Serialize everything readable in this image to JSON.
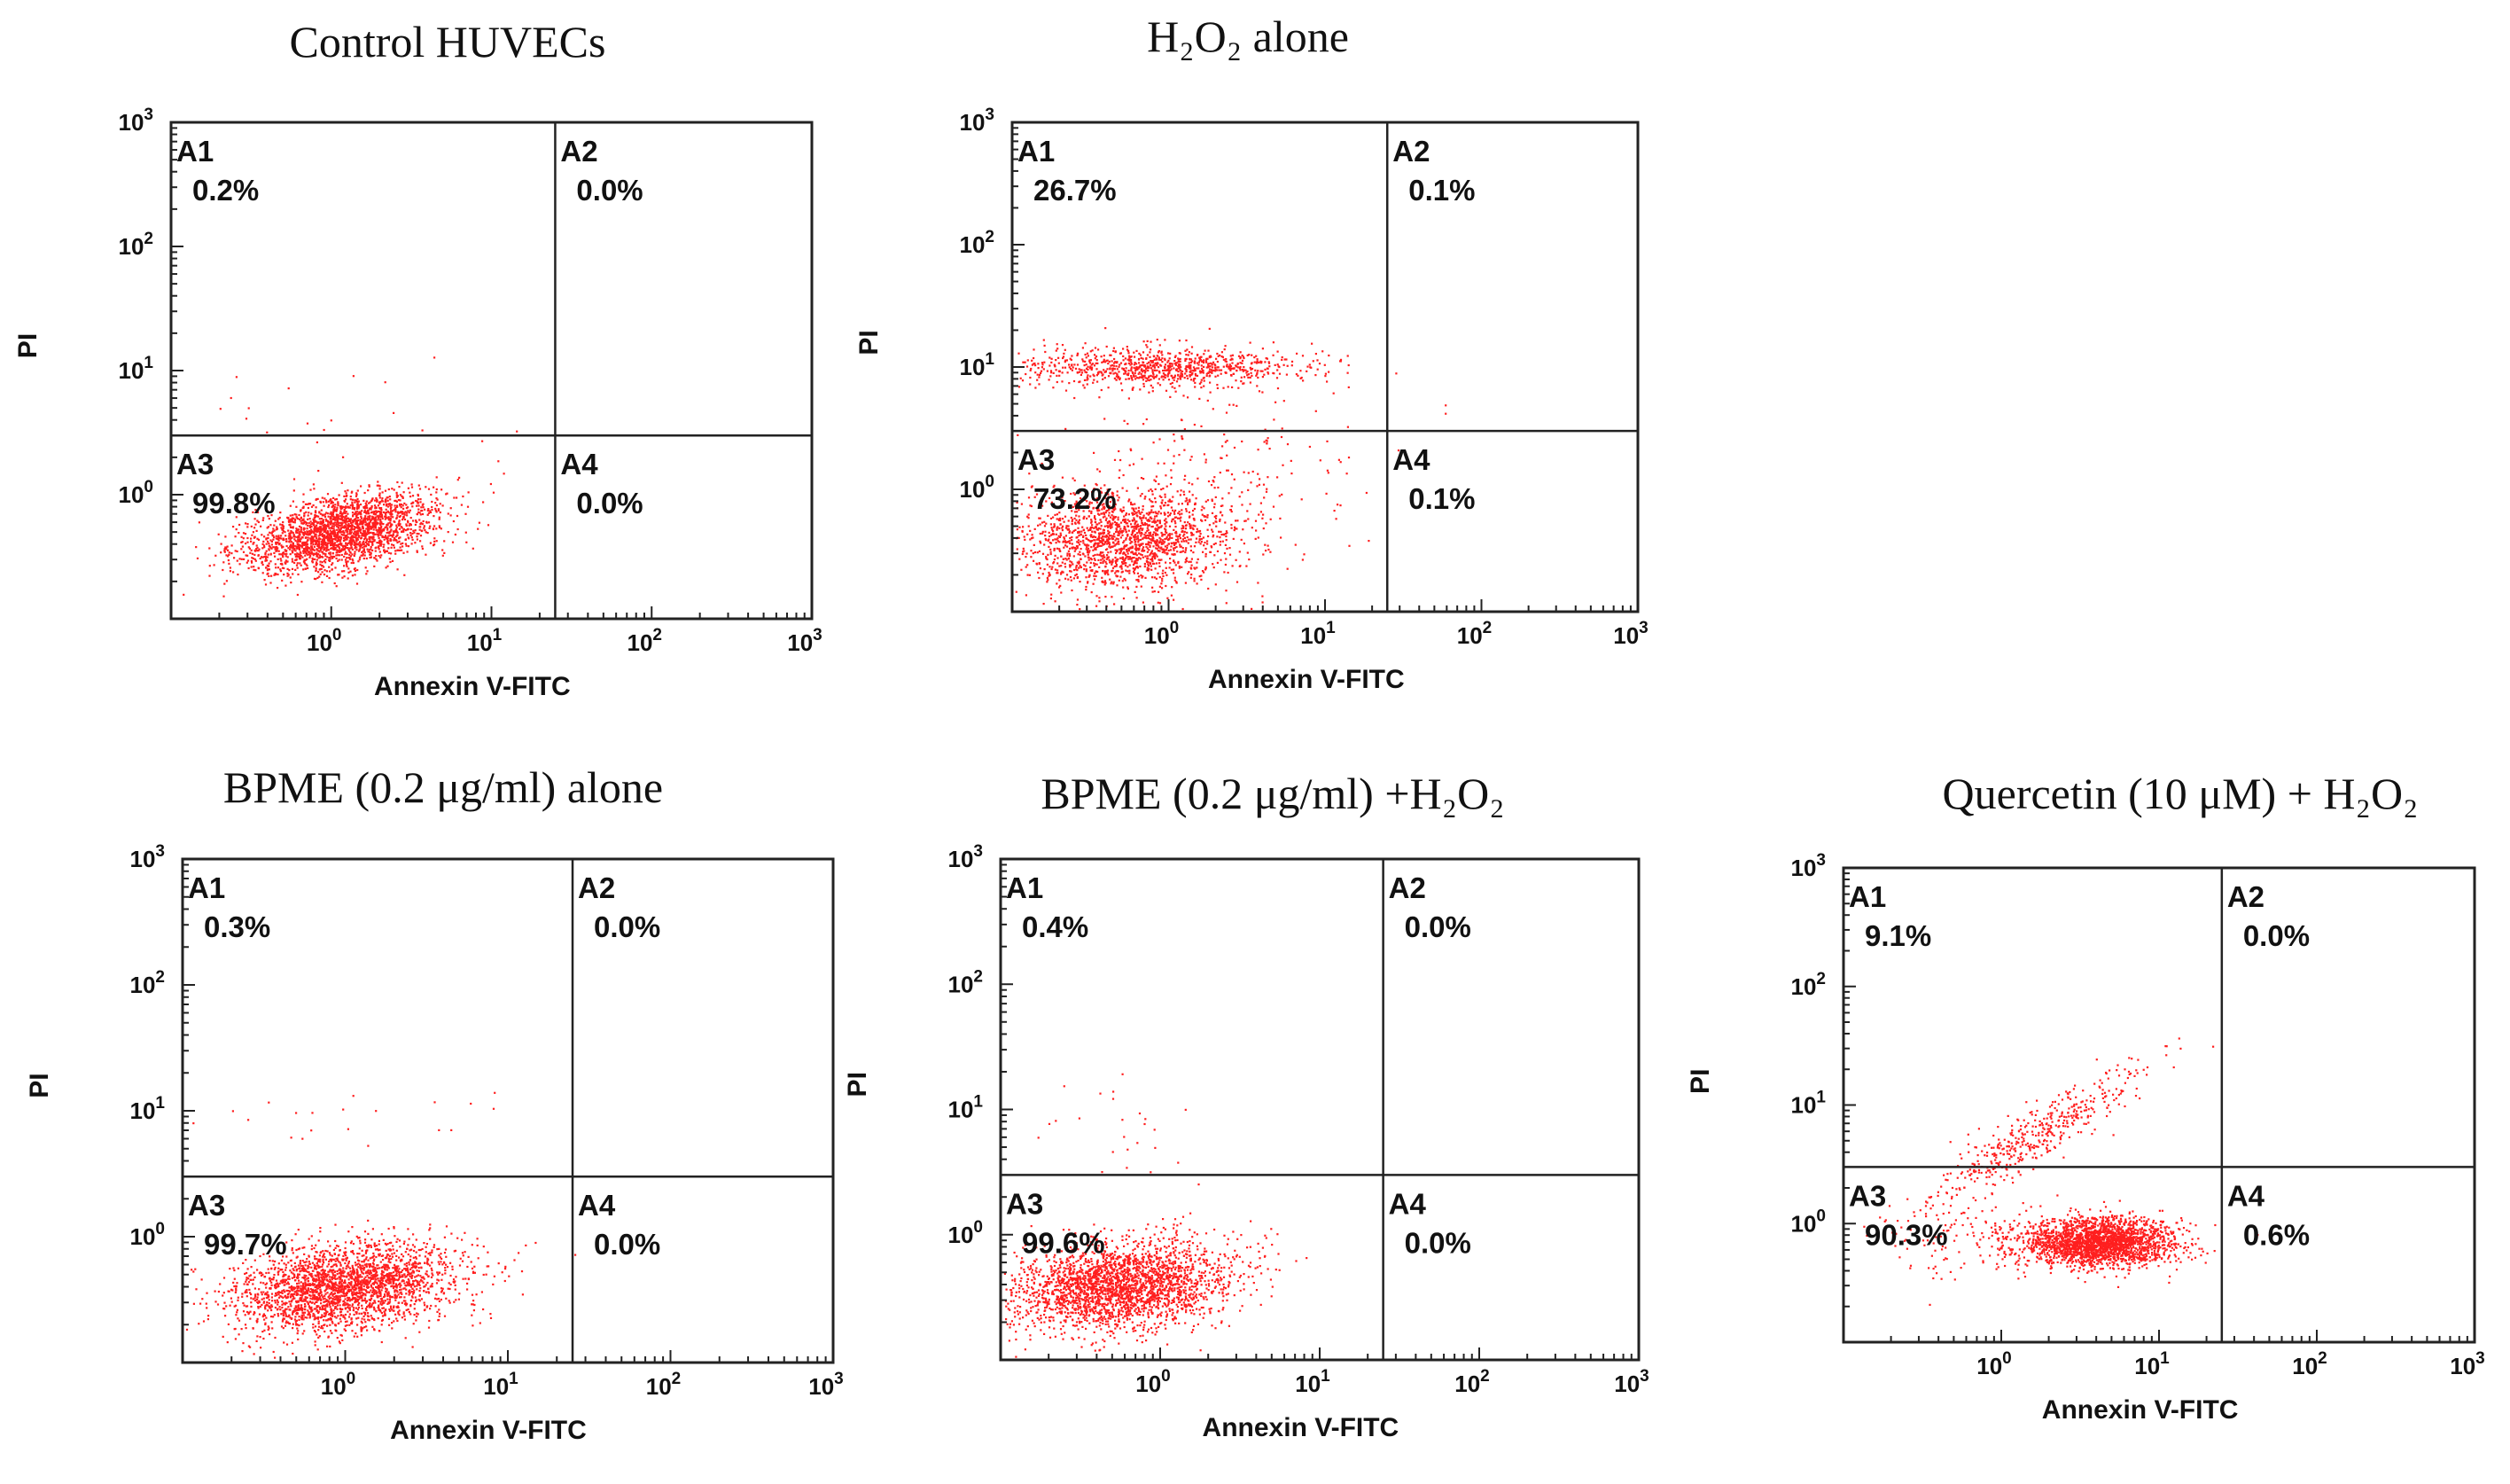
{
  "chart_data": [
    {
      "type": "scatter",
      "title": "Control HUVECs",
      "xlabel": "Annexin V-FITC",
      "ylabel": "PI",
      "x_scale": "log",
      "y_scale": "log",
      "xlim": [
        0.1,
        1000
      ],
      "ylim": [
        0.1,
        1000
      ],
      "x_ticks": [
        "10",
        "10",
        "10",
        "10"
      ],
      "x_tick_exps": [
        "0",
        "1",
        "2",
        "3"
      ],
      "y_ticks": [
        "10",
        "10",
        "10",
        "10"
      ],
      "y_tick_exps": [
        "0",
        "1",
        "2",
        "3"
      ],
      "gate": {
        "x": 25,
        "y": 3
      },
      "quadrants": [
        {
          "name": "A1",
          "percent": "0.2%"
        },
        {
          "name": "A2",
          "percent": "0.0%"
        },
        {
          "name": "A3",
          "percent": "99.8%"
        },
        {
          "name": "A4",
          "percent": "0.0%"
        }
      ],
      "populations": [
        {
          "count": 2400,
          "cx_log": 0.05,
          "cy_log": -0.3,
          "sx": 0.3,
          "sy": 0.16,
          "rho": 0.45
        },
        {
          "count": 25,
          "cx_log": 0.0,
          "cy_log": 0.6,
          "sx": 0.5,
          "sy": 0.3,
          "rho": 0.0
        }
      ],
      "color": "#ff1f1f"
    },
    {
      "type": "scatter",
      "title": "H₂O₂ alone",
      "xlabel": "Annexin V-FITC",
      "ylabel": "PI",
      "x_scale": "log",
      "y_scale": "log",
      "xlim": [
        0.1,
        1000
      ],
      "ylim": [
        0.1,
        1000
      ],
      "x_ticks": [
        "10",
        "10",
        "10",
        "10"
      ],
      "x_tick_exps": [
        "0",
        "1",
        "2",
        "3"
      ],
      "y_ticks": [
        "10",
        "10",
        "10",
        "10"
      ],
      "y_tick_exps": [
        "0",
        "1",
        "2",
        "3"
      ],
      "gate": {
        "x": 25,
        "y": 3
      },
      "quadrants": [
        {
          "name": "A1",
          "percent": "26.7%"
        },
        {
          "name": "A2",
          "percent": "0.1%"
        },
        {
          "name": "A3",
          "percent": "73.2%"
        },
        {
          "name": "A4",
          "percent": "0.1%"
        }
      ],
      "populations": [
        {
          "count": 1800,
          "cx_log": -0.3,
          "cy_log": -0.4,
          "sx": 0.35,
          "sy": 0.2,
          "rho": 0.1
        },
        {
          "count": 900,
          "cx_log": -0.05,
          "cy_log": 1.0,
          "sx": 0.45,
          "sy": 0.08,
          "rho": 0.0
        },
        {
          "count": 220,
          "cx_log": 0.2,
          "cy_log": 0.2,
          "sx": 0.6,
          "sy": 0.5,
          "rho": 0.0
        }
      ],
      "color": "#ff1f1f"
    },
    {
      "type": "scatter",
      "title": "BPME (0.2 μg/ml) alone",
      "xlabel": "Annexin V-FITC",
      "ylabel": "PI",
      "x_scale": "log",
      "y_scale": "log",
      "xlim": [
        0.1,
        1000
      ],
      "ylim": [
        0.1,
        1000
      ],
      "x_ticks": [
        "10",
        "10",
        "10",
        "10"
      ],
      "x_tick_exps": [
        "0",
        "1",
        "2",
        "3"
      ],
      "y_ticks": [
        "10",
        "10",
        "10",
        "10"
      ],
      "y_tick_exps": [
        "0",
        "1",
        "2",
        "3"
      ],
      "gate": {
        "x": 25,
        "y": 3
      },
      "quadrants": [
        {
          "name": "A1",
          "percent": "0.3%"
        },
        {
          "name": "A2",
          "percent": "0.0%"
        },
        {
          "name": "A3",
          "percent": "99.7%"
        },
        {
          "name": "A4",
          "percent": "0.0%"
        }
      ],
      "populations": [
        {
          "count": 2600,
          "cx_log": 0.0,
          "cy_log": -0.4,
          "sx": 0.35,
          "sy": 0.18,
          "rho": 0.3
        },
        {
          "count": 20,
          "cx_log": 0.2,
          "cy_log": 1.0,
          "sx": 0.5,
          "sy": 0.15,
          "rho": 0.0
        }
      ],
      "color": "#ff1f1f"
    },
    {
      "type": "scatter",
      "title": "BPME (0.2 μg/ml) +H₂O₂",
      "xlabel": "Annexin V-FITC",
      "ylabel": "PI",
      "x_scale": "log",
      "y_scale": "log",
      "xlim": [
        0.1,
        1000
      ],
      "ylim": [
        0.1,
        1000
      ],
      "x_ticks": [
        "10",
        "10",
        "10",
        "10"
      ],
      "x_tick_exps": [
        "0",
        "1",
        "2",
        "3"
      ],
      "y_ticks": [
        "10",
        "10",
        "10",
        "10"
      ],
      "y_tick_exps": [
        "0",
        "1",
        "2",
        "3"
      ],
      "gate": {
        "x": 25,
        "y": 3
      },
      "quadrants": [
        {
          "name": "A1",
          "percent": "0.4%"
        },
        {
          "name": "A2",
          "percent": "0.0%"
        },
        {
          "name": "A3",
          "percent": "99.6%"
        },
        {
          "name": "A4",
          "percent": "0.0%"
        }
      ],
      "populations": [
        {
          "count": 2600,
          "cx_log": -0.25,
          "cy_log": -0.4,
          "sx": 0.35,
          "sy": 0.18,
          "rho": 0.2
        },
        {
          "count": 25,
          "cx_log": -0.2,
          "cy_log": 0.9,
          "sx": 0.3,
          "sy": 0.25,
          "rho": 0.0
        }
      ],
      "color": "#ff1f1f"
    },
    {
      "type": "scatter",
      "title": "Quercetin (10 μM) + H₂O₂",
      "xlabel": "Annexin V-FITC",
      "ylabel": "PI",
      "x_scale": "log",
      "y_scale": "log",
      "xlim": [
        0.1,
        1000
      ],
      "ylim": [
        0.1,
        1000
      ],
      "x_ticks": [
        "10",
        "10",
        "10",
        "10"
      ],
      "x_tick_exps": [
        "0",
        "1",
        "2",
        "3"
      ],
      "y_ticks": [
        "10",
        "10",
        "10",
        "10"
      ],
      "y_tick_exps": [
        "0",
        "1",
        "2",
        "3"
      ],
      "gate": {
        "x": 25,
        "y": 3
      },
      "quadrants": [
        {
          "name": "A1",
          "percent": "9.1%"
        },
        {
          "name": "A2",
          "percent": "0.0%"
        },
        {
          "name": "A3",
          "percent": "90.3%"
        },
        {
          "name": "A4",
          "percent": "0.6%"
        }
      ],
      "populations": [
        {
          "count": 2300,
          "cx_log": 0.6,
          "cy_log": -0.15,
          "sx": 0.25,
          "sy": 0.1,
          "rho": 0.0
        },
        {
          "count": 450,
          "cx_log": 0.2,
          "cy_log": 0.75,
          "sx": 0.35,
          "sy": 0.3,
          "rho": 0.92
        },
        {
          "count": 120,
          "cx_log": -0.3,
          "cy_log": -0.1,
          "sx": 0.25,
          "sy": 0.2,
          "rho": 0.0
        }
      ],
      "color": "#ff1f1f"
    }
  ]
}
